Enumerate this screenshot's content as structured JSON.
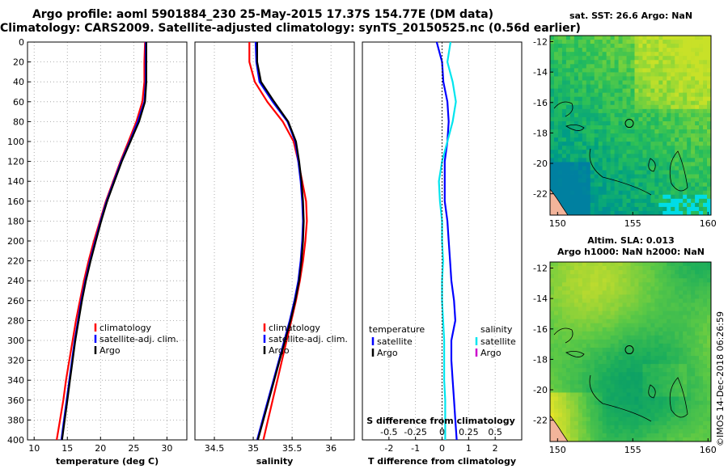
{
  "header": {
    "line1": "Argo profile: aoml 5901884_230 25-May-2015 17.37S 154.77E (DM data)",
    "line2": "Climatology: CARS2009. Satellite-adjusted climatology: synTS_20150525.nc (0.56d earlier)"
  },
  "watermark": "©IMOS 14-Dec-2018 06:26:59",
  "colors": {
    "clim": "#ff0000",
    "sat": "#0000ff",
    "argo": "#000000",
    "sal_sat": "#00e5ee",
    "sal_argo": "#cc00cc"
  },
  "chart_data": [
    {
      "type": "line",
      "title": "",
      "xlabel": "temperature (deg C)",
      "ylabel": "",
      "xlim": [
        9,
        33
      ],
      "ylim": [
        400,
        0
      ],
      "xticks": [
        10,
        15,
        20,
        25,
        30
      ],
      "yticks": [
        0,
        20,
        40,
        60,
        80,
        100,
        120,
        140,
        160,
        180,
        200,
        220,
        240,
        260,
        280,
        300,
        320,
        340,
        360,
        380,
        400
      ],
      "legend": [
        "climatology",
        "satellite-adj. clim.",
        "Argo"
      ],
      "series": [
        {
          "name": "climatology",
          "color": "#ff0000",
          "points": [
            [
              26.7,
              0
            ],
            [
              26.6,
              20
            ],
            [
              26.6,
              40
            ],
            [
              26.3,
              60
            ],
            [
              25.4,
              80
            ],
            [
              24.2,
              100
            ],
            [
              23.0,
              120
            ],
            [
              21.9,
              140
            ],
            [
              20.8,
              160
            ],
            [
              19.9,
              180
            ],
            [
              19.0,
              200
            ],
            [
              18.2,
              220
            ],
            [
              17.5,
              240
            ],
            [
              16.9,
              260
            ],
            [
              16.3,
              280
            ],
            [
              15.8,
              300
            ],
            [
              15.3,
              320
            ],
            [
              14.8,
              340
            ],
            [
              14.4,
              360
            ],
            [
              13.9,
              380
            ],
            [
              13.4,
              400
            ]
          ]
        },
        {
          "name": "satellite-adj. clim.",
          "color": "#0000ff",
          "points": [
            [
              26.8,
              0
            ],
            [
              26.8,
              20
            ],
            [
              26.8,
              40
            ],
            [
              26.6,
              60
            ],
            [
              25.6,
              80
            ],
            [
              24.4,
              100
            ],
            [
              23.1,
              120
            ],
            [
              22.0,
              140
            ],
            [
              20.9,
              160
            ],
            [
              20.0,
              180
            ],
            [
              19.2,
              200
            ],
            [
              18.4,
              220
            ],
            [
              17.7,
              240
            ],
            [
              17.1,
              260
            ],
            [
              16.6,
              280
            ],
            [
              16.1,
              300
            ],
            [
              15.7,
              320
            ],
            [
              15.3,
              340
            ],
            [
              14.9,
              360
            ],
            [
              14.5,
              380
            ],
            [
              14.1,
              400
            ]
          ]
        },
        {
          "name": "Argo",
          "color": "#000000",
          "points": [
            [
              26.9,
              0
            ],
            [
              26.9,
              20
            ],
            [
              26.9,
              40
            ],
            [
              26.7,
              60
            ],
            [
              25.8,
              80
            ],
            [
              24.5,
              100
            ],
            [
              23.2,
              120
            ],
            [
              22.1,
              140
            ],
            [
              21.0,
              160
            ],
            [
              20.1,
              180
            ],
            [
              19.3,
              200
            ],
            [
              18.5,
              220
            ],
            [
              17.8,
              240
            ],
            [
              17.2,
              260
            ],
            [
              16.7,
              280
            ],
            [
              16.2,
              300
            ],
            [
              15.8,
              320
            ],
            [
              15.4,
              340
            ],
            [
              15.0,
              360
            ],
            [
              14.6,
              380
            ],
            [
              14.2,
              400
            ]
          ]
        }
      ]
    },
    {
      "type": "line",
      "title": "",
      "xlabel": "salinity",
      "ylabel": "",
      "xlim": [
        34.25,
        36.3
      ],
      "ylim": [
        400,
        0
      ],
      "xticks": [
        34.5,
        35,
        35.5,
        36
      ],
      "xticklabels": [
        "34.5",
        "35",
        "35.5",
        "36"
      ],
      "legend": [
        "climatology",
        "satellite-adj. clim.",
        "Argo"
      ],
      "series": [
        {
          "name": "climatology",
          "color": "#ff0000",
          "points": [
            [
              34.95,
              0
            ],
            [
              34.95,
              20
            ],
            [
              35.02,
              40
            ],
            [
              35.18,
              60
            ],
            [
              35.38,
              80
            ],
            [
              35.52,
              100
            ],
            [
              35.58,
              120
            ],
            [
              35.63,
              140
            ],
            [
              35.68,
              160
            ],
            [
              35.69,
              180
            ],
            [
              35.67,
              200
            ],
            [
              35.64,
              220
            ],
            [
              35.6,
              240
            ],
            [
              35.55,
              260
            ],
            [
              35.49,
              280
            ],
            [
              35.43,
              300
            ],
            [
              35.37,
              320
            ],
            [
              35.31,
              340
            ],
            [
              35.25,
              360
            ],
            [
              35.19,
              380
            ],
            [
              35.13,
              400
            ]
          ]
        },
        {
          "name": "satellite-adj. clim.",
          "color": "#0000ff",
          "points": [
            [
              35.03,
              0
            ],
            [
              35.04,
              20
            ],
            [
              35.08,
              40
            ],
            [
              35.25,
              60
            ],
            [
              35.44,
              80
            ],
            [
              35.54,
              100
            ],
            [
              35.58,
              120
            ],
            [
              35.61,
              140
            ],
            [
              35.63,
              160
            ],
            [
              35.64,
              180
            ],
            [
              35.63,
              200
            ],
            [
              35.61,
              220
            ],
            [
              35.58,
              240
            ],
            [
              35.53,
              260
            ],
            [
              35.47,
              280
            ],
            [
              35.4,
              300
            ],
            [
              35.33,
              320
            ],
            [
              35.26,
              340
            ],
            [
              35.19,
              360
            ],
            [
              35.12,
              380
            ],
            [
              35.05,
              400
            ]
          ]
        },
        {
          "name": "Argo",
          "color": "#000000",
          "points": [
            [
              35.05,
              0
            ],
            [
              35.05,
              20
            ],
            [
              35.1,
              40
            ],
            [
              35.27,
              60
            ],
            [
              35.45,
              80
            ],
            [
              35.55,
              100
            ],
            [
              35.59,
              120
            ],
            [
              35.62,
              140
            ],
            [
              35.64,
              160
            ],
            [
              35.65,
              180
            ],
            [
              35.64,
              200
            ],
            [
              35.62,
              220
            ],
            [
              35.59,
              240
            ],
            [
              35.54,
              260
            ],
            [
              35.48,
              280
            ],
            [
              35.41,
              300
            ],
            [
              35.34,
              320
            ],
            [
              35.27,
              340
            ],
            [
              35.2,
              360
            ],
            [
              35.13,
              380
            ],
            [
              35.06,
              400
            ]
          ]
        }
      ]
    },
    {
      "type": "line",
      "title": "",
      "xlabel": "T difference from climatology",
      "ylabel": "",
      "xlim": [
        -3,
        3
      ],
      "ylim": [
        400,
        0
      ],
      "xticks": [
        -2,
        -1,
        0,
        1,
        2
      ],
      "xticklabels": [
        "-2",
        "-1",
        "0",
        "1",
        "2"
      ],
      "sticks": [
        -0.5,
        -0.25,
        0,
        0.25,
        0.5
      ],
      "sticklabels": [
        "-0.5",
        "-0.25",
        "0",
        "0.25",
        "0.5"
      ],
      "slabel": "S difference from climatology",
      "legend_temperature_title": "temperature",
      "legend_salinity_title": "salinity",
      "legend_temperature": [
        "satellite",
        "Argo"
      ],
      "legend_salinity": [
        "satellite",
        "Argo"
      ],
      "series": [
        {
          "name": "temperature satellite",
          "color": "#0000ff",
          "points": [
            [
              -0.2,
              0
            ],
            [
              -0.1,
              10
            ],
            [
              0.0,
              20
            ],
            [
              0.05,
              40
            ],
            [
              0.2,
              60
            ],
            [
              0.25,
              80
            ],
            [
              0.2,
              100
            ],
            [
              0.1,
              120
            ],
            [
              0.1,
              140
            ],
            [
              0.1,
              160
            ],
            [
              0.2,
              180
            ],
            [
              0.25,
              200
            ],
            [
              0.3,
              220
            ],
            [
              0.35,
              240
            ],
            [
              0.45,
              260
            ],
            [
              0.5,
              280
            ],
            [
              0.35,
              300
            ],
            [
              0.35,
              320
            ],
            [
              0.4,
              340
            ],
            [
              0.45,
              360
            ],
            [
              0.5,
              380
            ],
            [
              0.55,
              400
            ]
          ]
        },
        {
          "name": "salinity satellite",
          "color": "#00e5ee",
          "points": [
            [
              0.08,
              0
            ],
            [
              0.05,
              20
            ],
            [
              0.1,
              40
            ],
            [
              0.13,
              60
            ],
            [
              0.1,
              80
            ],
            [
              0.05,
              100
            ],
            [
              0.0,
              120
            ],
            [
              -0.03,
              140
            ],
            [
              -0.02,
              160
            ],
            [
              0.0,
              180
            ],
            [
              0.0,
              200
            ],
            [
              0.01,
              220
            ],
            [
              0.0,
              240
            ],
            [
              0.0,
              260
            ],
            [
              0.01,
              280
            ],
            [
              0.02,
              300
            ],
            [
              0.02,
              320
            ],
            [
              0.02,
              340
            ],
            [
              0.03,
              360
            ],
            [
              0.03,
              380
            ],
            [
              0.03,
              400
            ]
          ]
        }
      ]
    },
    {
      "type": "heatmap",
      "title": "sat. SST: 26.6 Argo: NaN",
      "xlim": [
        149.5,
        160.2
      ],
      "ylim": [
        -23.4,
        -11.6
      ],
      "xticks": [
        150,
        155,
        160
      ],
      "yticks": [
        -12,
        -14,
        -16,
        -18,
        -20,
        -22
      ],
      "xticklabels": [
        "150",
        "155",
        "160"
      ],
      "yticklabels": [
        "-12",
        "-14",
        "-16",
        "-18",
        "-20",
        "-22"
      ],
      "argo_position": [
        154.77,
        -17.37
      ]
    },
    {
      "type": "heatmap",
      "title": "Altim. SLA: 0.013",
      "subtitle": "Argo h1000: NaN h2000: NaN",
      "xlim": [
        149.5,
        160.2
      ],
      "ylim": [
        -23.4,
        -11.6
      ],
      "xticks": [
        150,
        155,
        160
      ],
      "yticks": [
        -12,
        -14,
        -16,
        -18,
        -20,
        -22
      ],
      "xticklabels": [
        "150",
        "155",
        "160"
      ],
      "yticklabels": [
        "-12",
        "-14",
        "-16",
        "-18",
        "-20",
        "-22"
      ],
      "argo_position": [
        154.77,
        -17.37
      ]
    }
  ]
}
